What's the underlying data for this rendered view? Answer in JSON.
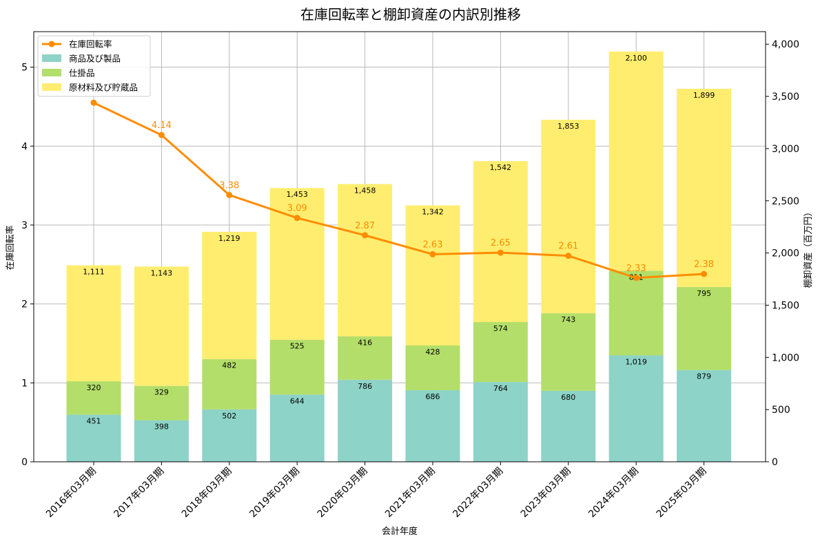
{
  "chart_data": {
    "type": "bar",
    "title": "在庫回転率と棚卸資産の内訳別推移",
    "xlabel": "会計年度",
    "ylabel_left": "在庫回転率",
    "ylabel_right": "棚卸資産（百万円）",
    "categories": [
      "2016年03月期",
      "2017年03月期",
      "2018年03月期",
      "2019年03月期",
      "2020年03月期",
      "2021年03月期",
      "2022年03月期",
      "2023年03月期",
      "2024年03月期",
      "2025年03月期"
    ],
    "series": [
      {
        "name": "商品及び製品",
        "kind": "stacked-bar",
        "axis": "right",
        "color": "#8dd3c7",
        "values": [
          451,
          398,
          502,
          644,
          786,
          686,
          764,
          680,
          1019,
          879
        ],
        "labels": [
          "451",
          "398",
          "502",
          "644",
          "786",
          "686",
          "764",
          "680",
          "1,019",
          "879"
        ]
      },
      {
        "name": "仕掛品",
        "kind": "stacked-bar",
        "axis": "right",
        "color": "#b3de69",
        "values": [
          320,
          329,
          482,
          525,
          416,
          428,
          574,
          743,
          811,
          795
        ],
        "labels": [
          "320",
          "329",
          "482",
          "525",
          "416",
          "428",
          "574",
          "743",
          "811",
          "795"
        ]
      },
      {
        "name": "原材料及び貯蔵品",
        "kind": "stacked-bar",
        "axis": "right",
        "color": "#ffed6f",
        "values": [
          1111,
          1143,
          1219,
          1453,
          1458,
          1342,
          1542,
          1853,
          2100,
          1899
        ],
        "labels": [
          "1,111",
          "1,143",
          "1,219",
          "1,453",
          "1,458",
          "1,342",
          "1,542",
          "1,853",
          "2,100",
          "1,899"
        ]
      },
      {
        "name": "在庫回転率",
        "kind": "line",
        "axis": "left",
        "color": "#ff8c00",
        "values": [
          4.55,
          4.14,
          3.38,
          3.09,
          2.87,
          2.63,
          2.65,
          2.61,
          2.33,
          2.38
        ],
        "labels": [
          "",
          "4.14",
          "3.38",
          "3.09",
          "2.87",
          "2.63",
          "2.65",
          "2.61",
          "2.33",
          "2.38"
        ]
      }
    ],
    "ylim_left": [
      0,
      5.45
    ],
    "yticks_left": [
      "0",
      "1",
      "2",
      "3",
      "4",
      "5"
    ],
    "ylim_right": [
      0,
      4120
    ],
    "yticks_right": [
      "0",
      "500",
      "1,000",
      "1,500",
      "2,000",
      "2,500",
      "3,000",
      "3,500",
      "4,000"
    ],
    "grid": true,
    "legend_position": "top-left"
  }
}
